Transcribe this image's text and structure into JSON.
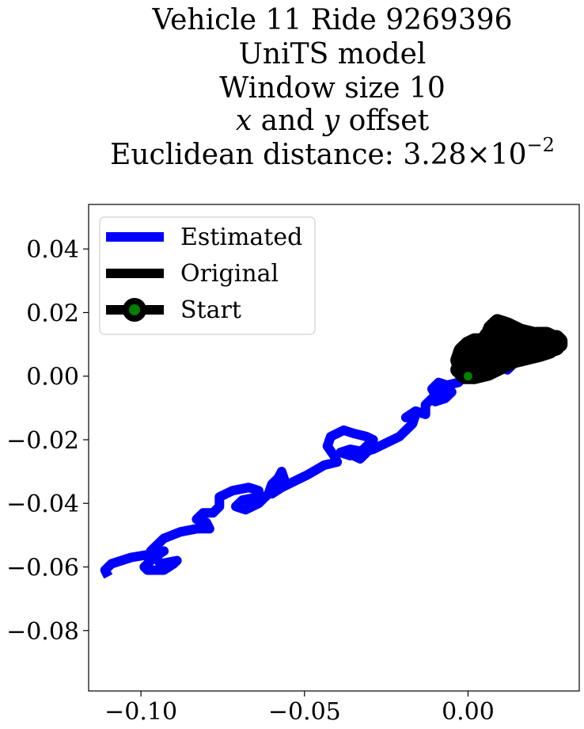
{
  "chart_data": {
    "type": "line",
    "title_lines": [
      "Vehicle 11 Ride 9269396",
      "UniTS model",
      "Window size 10",
      "x and y offset",
      "Euclidean distance: 3.28×10−2"
    ],
    "title_math": {
      "line4": {
        "x": "x",
        "mid": " and ",
        "y": "y",
        "end": " offset"
      },
      "line5": {
        "prefix": "Euclidean distance: ",
        "mantissa": "3.28",
        "times": "×",
        "base": "10",
        "exponent": "−2"
      }
    },
    "xlim": [
      -0.116,
      0.034
    ],
    "ylim": [
      -0.099,
      0.054
    ],
    "x_ticks": [
      -0.1,
      -0.05,
      0.0
    ],
    "x_tick_labels": [
      "−0.10",
      "−0.05",
      "0.00"
    ],
    "y_ticks": [
      0.04,
      0.02,
      0.0,
      -0.02,
      -0.04,
      -0.06,
      -0.08
    ],
    "y_tick_labels": [
      "0.04",
      "0.02",
      "0.00",
      "−0.02",
      "−0.04",
      "−0.06",
      "−0.08"
    ],
    "grid": false,
    "legend_position": "upper-left",
    "series": [
      {
        "name": "Estimated",
        "color": "#0000ff",
        "x": [
          -0.11,
          -0.111,
          -0.109,
          -0.103,
          -0.097,
          -0.093,
          -0.096,
          -0.099,
          -0.098,
          -0.093,
          -0.09,
          -0.089,
          -0.094,
          -0.097,
          -0.093,
          -0.088,
          -0.083,
          -0.079,
          -0.08,
          -0.083,
          -0.081,
          -0.078,
          -0.076,
          -0.076,
          -0.072,
          -0.067,
          -0.064,
          -0.064,
          -0.069,
          -0.071,
          -0.068,
          -0.064,
          -0.061,
          -0.06,
          -0.058,
          -0.057,
          -0.056,
          -0.059,
          -0.06,
          -0.057,
          -0.053,
          -0.049,
          -0.044,
          -0.04,
          -0.041,
          -0.043,
          -0.042,
          -0.038,
          -0.035,
          -0.031,
          -0.029,
          -0.032,
          -0.035,
          -0.033,
          -0.031,
          -0.036,
          -0.039,
          -0.036,
          -0.029,
          -0.025,
          -0.021,
          -0.017,
          -0.016,
          -0.019,
          -0.016,
          -0.013,
          -0.013,
          -0.01,
          -0.011,
          -0.009,
          -0.006,
          -0.009,
          -0.01,
          -0.007,
          -0.005,
          -0.007,
          -0.003,
          -0.001,
          0.0,
          0.003,
          0.005,
          0.002,
          0.0,
          0.002,
          0.004,
          0.006,
          0.01,
          0.011,
          0.012,
          0.01,
          0.012,
          0.014,
          0.015,
          0.016,
          0.014,
          0.013,
          0.016
        ],
        "y": [
          -0.063,
          -0.061,
          -0.059,
          -0.057,
          -0.056,
          -0.055,
          -0.057,
          -0.06,
          -0.061,
          -0.061,
          -0.059,
          -0.058,
          -0.059,
          -0.055,
          -0.051,
          -0.049,
          -0.048,
          -0.048,
          -0.046,
          -0.045,
          -0.043,
          -0.043,
          -0.041,
          -0.038,
          -0.036,
          -0.035,
          -0.036,
          -0.038,
          -0.039,
          -0.041,
          -0.042,
          -0.04,
          -0.037,
          -0.034,
          -0.032,
          -0.03,
          -0.033,
          -0.035,
          -0.037,
          -0.035,
          -0.033,
          -0.031,
          -0.028,
          -0.027,
          -0.025,
          -0.022,
          -0.019,
          -0.017,
          -0.018,
          -0.019,
          -0.02,
          -0.023,
          -0.025,
          -0.026,
          -0.024,
          -0.023,
          -0.024,
          -0.025,
          -0.023,
          -0.021,
          -0.019,
          -0.015,
          -0.012,
          -0.013,
          -0.011,
          -0.012,
          -0.009,
          -0.006,
          -0.004,
          -0.002,
          -0.003,
          -0.006,
          -0.008,
          -0.007,
          -0.005,
          -0.003,
          -0.002,
          0.0,
          0.001,
          0.002,
          0.0,
          -0.001,
          0.001,
          0.004,
          0.006,
          0.008,
          0.009,
          0.007,
          0.005,
          0.003,
          0.002,
          0.004,
          0.008,
          0.009,
          0.007,
          0.008,
          0.01
        ]
      },
      {
        "name": "Original",
        "color": "#000000",
        "x": [
          0.0,
          -0.002,
          -0.003,
          -0.002,
          0.0,
          0.002,
          0.005,
          0.009,
          0.013,
          0.017,
          0.021,
          0.025,
          0.028,
          0.028,
          0.026,
          0.023,
          0.02,
          0.016,
          0.012,
          0.009,
          0.007,
          0.006,
          0.004,
          0.001,
          -0.001,
          -0.002,
          -0.001,
          0.002,
          0.006,
          0.01,
          0.014,
          0.018,
          0.022,
          0.025,
          0.027,
          0.026,
          0.024,
          0.021,
          0.017,
          0.013,
          0.01,
          0.008,
          0.006,
          0.004,
          0.002,
          0.0,
          -0.002,
          -0.003,
          -0.001,
          0.002,
          0.005,
          0.008,
          0.012,
          0.016,
          0.02,
          0.024,
          0.027,
          0.028,
          0.027,
          0.024,
          0.02,
          0.015,
          0.011,
          0.008,
          0.006,
          0.003,
          0.001,
          0.0
        ],
        "y": [
          0.0,
          0.002,
          0.005,
          0.008,
          0.01,
          0.011,
          0.011,
          0.01,
          0.009,
          0.008,
          0.008,
          0.009,
          0.01,
          0.011,
          0.012,
          0.012,
          0.013,
          0.014,
          0.016,
          0.017,
          0.015,
          0.012,
          0.009,
          0.006,
          0.003,
          0.001,
          0.0,
          0.0,
          0.001,
          0.003,
          0.005,
          0.006,
          0.007,
          0.008,
          0.01,
          0.012,
          0.013,
          0.013,
          0.012,
          0.011,
          0.013,
          0.015,
          0.013,
          0.01,
          0.008,
          0.006,
          0.004,
          0.002,
          0.001,
          0.001,
          0.002,
          0.004,
          0.006,
          0.007,
          0.007,
          0.008,
          0.009,
          0.011,
          0.012,
          0.012,
          0.011,
          0.01,
          0.009,
          0.008,
          0.006,
          0.004,
          0.002,
          0.0
        ]
      }
    ],
    "start_point": {
      "name": "Start",
      "x": 0.0,
      "y": 0.0,
      "fill": "#008000",
      "edge": "#000000"
    },
    "legend": [
      {
        "label": "Estimated",
        "color": "#0000ff",
        "marker": false
      },
      {
        "label": "Original",
        "color": "#000000",
        "marker": false
      },
      {
        "label": "Start",
        "color": "#000000",
        "marker": true,
        "marker_fill": "#008000"
      }
    ]
  }
}
